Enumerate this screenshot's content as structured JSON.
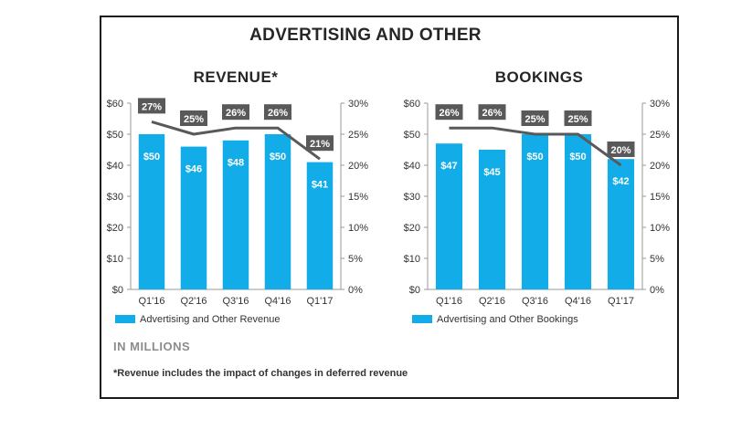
{
  "title": "ADVERTISING AND OTHER",
  "units_note": "IN MILLIONS",
  "footnote": "*Revenue includes the impact of changes in deferred revenue",
  "colors": {
    "bar": "#12ADE8",
    "line": "#595959",
    "label_box": "#595959",
    "axis": "#9a9a9a",
    "text": "#333333"
  },
  "chart_data": [
    {
      "type": "bar",
      "title": "REVENUE*",
      "categories": [
        "Q1'16",
        "Q2'16",
        "Q3'16",
        "Q4'16",
        "Q1'17"
      ],
      "series": [
        {
          "name": "Advertising and Other Revenue",
          "values": [
            50,
            46,
            48,
            50,
            41
          ],
          "labels": [
            "$50",
            "$46",
            "$48",
            "$50",
            "$41"
          ],
          "axis": "left"
        },
        {
          "type": "line",
          "values": [
            27,
            25,
            26,
            26,
            21
          ],
          "labels": [
            "27%",
            "25%",
            "26%",
            "26%",
            "21%"
          ],
          "axis": "right"
        }
      ],
      "ylim": [
        0,
        60
      ],
      "yticks": [
        "$0",
        "$10",
        "$20",
        "$30",
        "$40",
        "$50",
        "$60"
      ],
      "y2lim": [
        0,
        30
      ],
      "y2ticks": [
        "0%",
        "5%",
        "10%",
        "15%",
        "20%",
        "25%",
        "30%"
      ],
      "legend": "bottom-left",
      "grid": false
    },
    {
      "type": "bar",
      "title": "BOOKINGS",
      "categories": [
        "Q1'16",
        "Q2'16",
        "Q3'16",
        "Q4'16",
        "Q1'17"
      ],
      "series": [
        {
          "name": "Advertising and Other Bookings",
          "values": [
            47,
            45,
            50,
            50,
            42
          ],
          "labels": [
            "$47",
            "$45",
            "$50",
            "$50",
            "$42"
          ],
          "axis": "left"
        },
        {
          "type": "line",
          "values": [
            26,
            26,
            25,
            25,
            20
          ],
          "labels": [
            "26%",
            "26%",
            "25%",
            "25%",
            "20%"
          ],
          "axis": "right"
        }
      ],
      "ylim": [
        0,
        60
      ],
      "yticks": [
        "$0",
        "$10",
        "$20",
        "$30",
        "$40",
        "$50",
        "$60"
      ],
      "y2lim": [
        0,
        30
      ],
      "y2ticks": [
        "0%",
        "5%",
        "10%",
        "15%",
        "20%",
        "25%",
        "30%"
      ],
      "legend": "bottom-left",
      "grid": false
    }
  ]
}
